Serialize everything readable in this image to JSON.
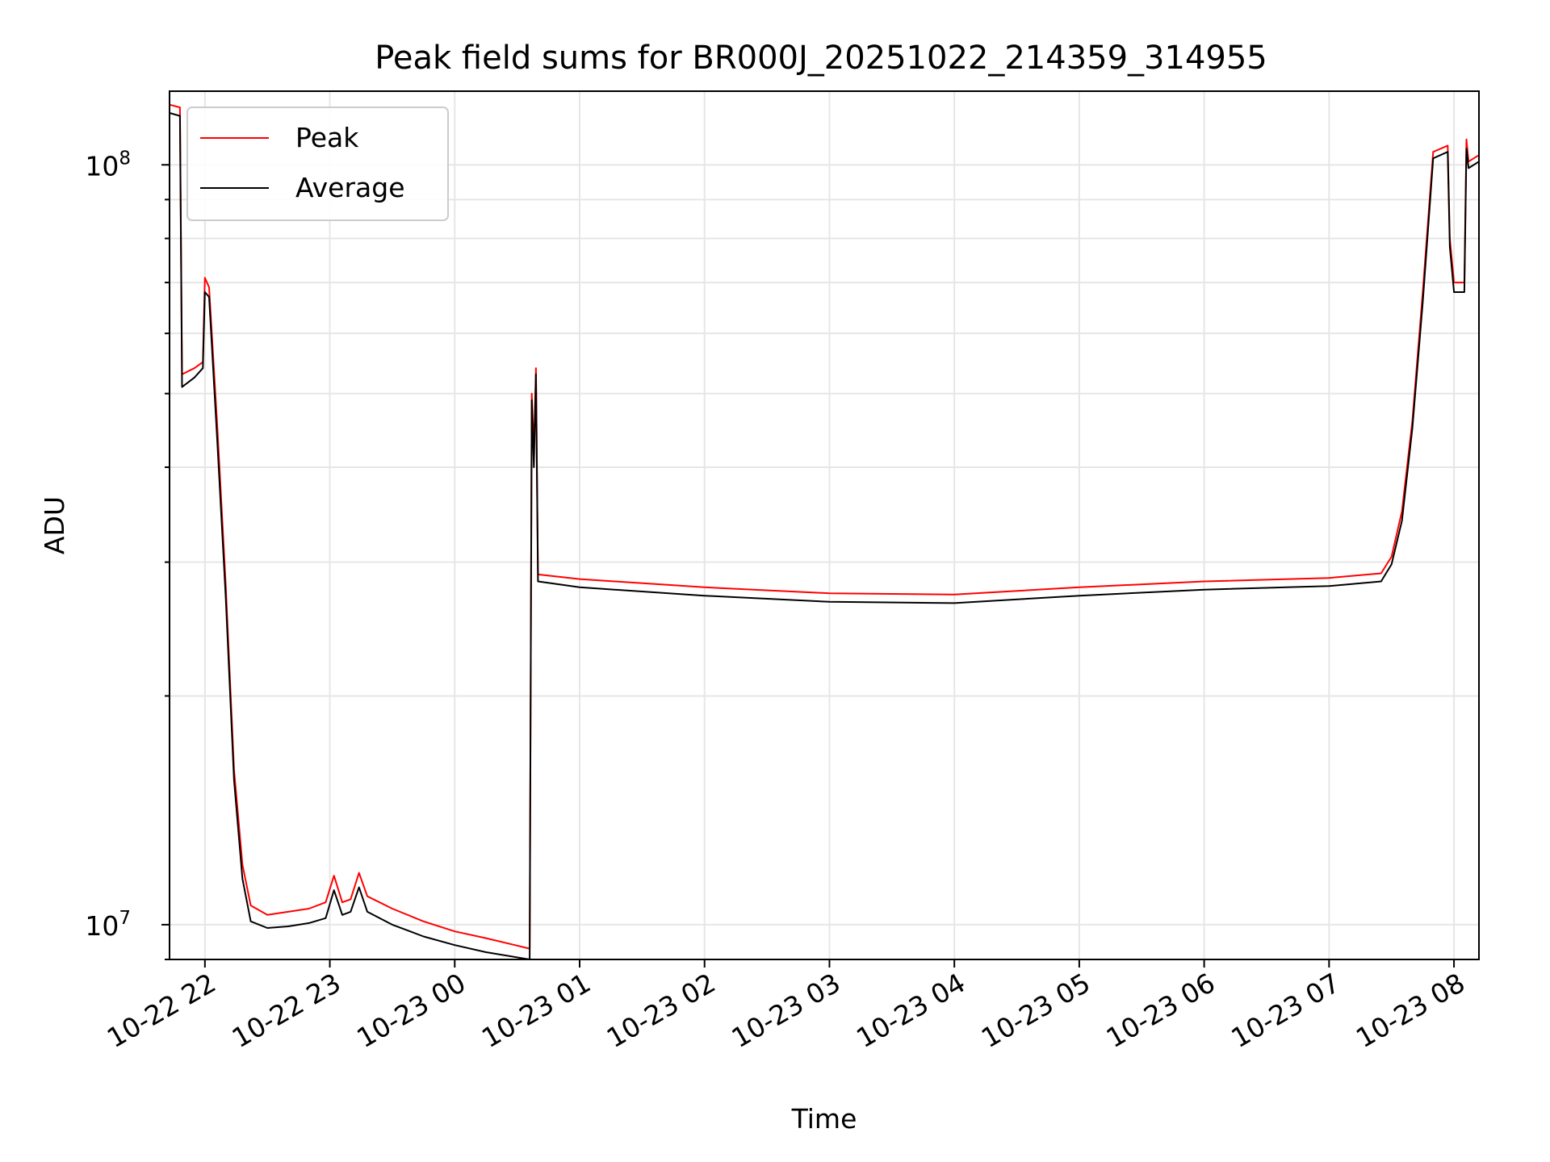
{
  "chart_data": {
    "type": "line",
    "title": "Peak field sums for BR000J_20251022_214359_314955",
    "xlabel": "Time",
    "ylabel": "ADU",
    "yscale": "log",
    "ylim": [
      9000000,
      125000000
    ],
    "xlim": [
      "2025-10-22 21:43",
      "2025-10-23 08:12"
    ],
    "grid": true,
    "legend": {
      "placement": "top-left"
    },
    "x_ticks": [
      {
        "t": "2025-10-22 22:00",
        "label": "10-22 22"
      },
      {
        "t": "2025-10-22 23:00",
        "label": "10-22 23"
      },
      {
        "t": "2025-10-23 00:00",
        "label": "10-23 00"
      },
      {
        "t": "2025-10-23 01:00",
        "label": "10-23 01"
      },
      {
        "t": "2025-10-23 02:00",
        "label": "10-23 02"
      },
      {
        "t": "2025-10-23 03:00",
        "label": "10-23 03"
      },
      {
        "t": "2025-10-23 04:00",
        "label": "10-23 04"
      },
      {
        "t": "2025-10-23 05:00",
        "label": "10-23 05"
      },
      {
        "t": "2025-10-23 06:00",
        "label": "10-23 06"
      },
      {
        "t": "2025-10-23 07:00",
        "label": "10-23 07"
      },
      {
        "t": "2025-10-23 08:00",
        "label": "10-23 08"
      }
    ],
    "y_ticks": [
      {
        "value": 10000000,
        "base": "10",
        "exp": "7"
      },
      {
        "value": 100000000,
        "base": "10",
        "exp": "8"
      }
    ],
    "series": [
      {
        "name": "Peak",
        "color": "#ff0000",
        "points": [
          [
            "2025-10-22 21:43",
            120000000
          ],
          [
            "2025-10-22 21:48",
            119000000
          ],
          [
            "2025-10-22 21:49",
            53000000
          ],
          [
            "2025-10-22 21:55",
            54000000
          ],
          [
            "2025-10-22 21:59",
            55000000
          ],
          [
            "2025-10-22 22:00",
            71000000
          ],
          [
            "2025-10-22 22:02",
            69000000
          ],
          [
            "2025-10-22 22:06",
            45000000
          ],
          [
            "2025-10-22 22:10",
            28000000
          ],
          [
            "2025-10-22 22:14",
            16000000
          ],
          [
            "2025-10-22 22:18",
            12000000
          ],
          [
            "2025-10-22 22:22",
            10600000
          ],
          [
            "2025-10-22 22:30",
            10300000
          ],
          [
            "2025-10-22 22:40",
            10400000
          ],
          [
            "2025-10-22 22:50",
            10500000
          ],
          [
            "2025-10-22 22:58",
            10700000
          ],
          [
            "2025-10-22 23:02",
            11600000
          ],
          [
            "2025-10-22 23:06",
            10700000
          ],
          [
            "2025-10-22 23:10",
            10800000
          ],
          [
            "2025-10-22 23:14",
            11700000
          ],
          [
            "2025-10-22 23:18",
            10900000
          ],
          [
            "2025-10-22 23:30",
            10500000
          ],
          [
            "2025-10-22 23:45",
            10100000
          ],
          [
            "2025-10-23 00:00",
            9800000
          ],
          [
            "2025-10-23 00:15",
            9600000
          ],
          [
            "2025-10-23 00:36",
            9300000
          ],
          [
            "2025-10-23 00:37",
            50000000
          ],
          [
            "2025-10-23 00:38",
            42000000
          ],
          [
            "2025-10-23 00:39",
            54000000
          ],
          [
            "2025-10-23 00:40",
            28900000
          ],
          [
            "2025-10-23 01:00",
            28500000
          ],
          [
            "2025-10-23 02:00",
            27800000
          ],
          [
            "2025-10-23 03:00",
            27300000
          ],
          [
            "2025-10-23 04:00",
            27200000
          ],
          [
            "2025-10-23 05:00",
            27800000
          ],
          [
            "2025-10-23 06:00",
            28300000
          ],
          [
            "2025-10-23 07:00",
            28600000
          ],
          [
            "2025-10-23 07:25",
            29000000
          ],
          [
            "2025-10-23 07:30",
            30500000
          ],
          [
            "2025-10-23 07:35",
            35000000
          ],
          [
            "2025-10-23 07:40",
            46000000
          ],
          [
            "2025-10-23 07:45",
            68000000
          ],
          [
            "2025-10-23 07:50",
            104000000
          ],
          [
            "2025-10-23 07:57",
            106000000
          ],
          [
            "2025-10-23 07:58",
            80000000
          ],
          [
            "2025-10-23 08:00",
            70000000
          ],
          [
            "2025-10-23 08:05",
            70000000
          ],
          [
            "2025-10-23 08:06",
            108000000
          ],
          [
            "2025-10-23 08:07",
            101000000
          ],
          [
            "2025-10-23 08:12",
            103000000
          ]
        ]
      },
      {
        "name": "Average",
        "color": "#000000",
        "points": [
          [
            "2025-10-22 21:43",
            117000000
          ],
          [
            "2025-10-22 21:48",
            116000000
          ],
          [
            "2025-10-22 21:49",
            51000000
          ],
          [
            "2025-10-22 21:55",
            52500000
          ],
          [
            "2025-10-22 21:59",
            54000000
          ],
          [
            "2025-10-22 22:00",
            68000000
          ],
          [
            "2025-10-22 22:02",
            67000000
          ],
          [
            "2025-10-22 22:06",
            43000000
          ],
          [
            "2025-10-22 22:10",
            27000000
          ],
          [
            "2025-10-22 22:14",
            15500000
          ],
          [
            "2025-10-22 22:18",
            11500000
          ],
          [
            "2025-10-22 22:22",
            10100000
          ],
          [
            "2025-10-22 22:30",
            9900000
          ],
          [
            "2025-10-22 22:40",
            9950000
          ],
          [
            "2025-10-22 22:50",
            10050000
          ],
          [
            "2025-10-22 22:58",
            10200000
          ],
          [
            "2025-10-22 23:02",
            11100000
          ],
          [
            "2025-10-22 23:06",
            10300000
          ],
          [
            "2025-10-22 23:10",
            10400000
          ],
          [
            "2025-10-22 23:14",
            11200000
          ],
          [
            "2025-10-22 23:18",
            10400000
          ],
          [
            "2025-10-22 23:30",
            10000000
          ],
          [
            "2025-10-22 23:45",
            9650000
          ],
          [
            "2025-10-23 00:00",
            9400000
          ],
          [
            "2025-10-23 00:15",
            9200000
          ],
          [
            "2025-10-23 00:36",
            9000000
          ],
          [
            "2025-10-23 00:37",
            49000000
          ],
          [
            "2025-10-23 00:38",
            40000000
          ],
          [
            "2025-10-23 00:39",
            53000000
          ],
          [
            "2025-10-23 00:40",
            28300000
          ],
          [
            "2025-10-23 01:00",
            27800000
          ],
          [
            "2025-10-23 02:00",
            27100000
          ],
          [
            "2025-10-23 03:00",
            26600000
          ],
          [
            "2025-10-23 04:00",
            26500000
          ],
          [
            "2025-10-23 05:00",
            27100000
          ],
          [
            "2025-10-23 06:00",
            27600000
          ],
          [
            "2025-10-23 07:00",
            27900000
          ],
          [
            "2025-10-23 07:25",
            28300000
          ],
          [
            "2025-10-23 07:30",
            29800000
          ],
          [
            "2025-10-23 07:35",
            34000000
          ],
          [
            "2025-10-23 07:40",
            45000000
          ],
          [
            "2025-10-23 07:45",
            66000000
          ],
          [
            "2025-10-23 07:50",
            102000000
          ],
          [
            "2025-10-23 07:57",
            104000000
          ],
          [
            "2025-10-23 07:58",
            78000000
          ],
          [
            "2025-10-23 08:00",
            68000000
          ],
          [
            "2025-10-23 08:05",
            68000000
          ],
          [
            "2025-10-23 08:06",
            105000000
          ],
          [
            "2025-10-23 08:07",
            99000000
          ],
          [
            "2025-10-23 08:12",
            101000000
          ]
        ]
      }
    ]
  }
}
